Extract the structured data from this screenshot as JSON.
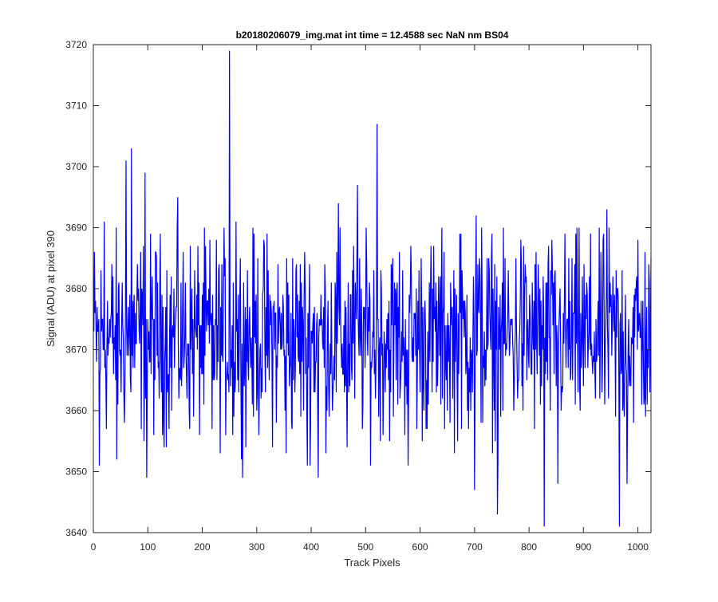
{
  "chart_data": {
    "type": "line",
    "title": "b20180206079_img.mat int time = 12.4588 sec  NaN nm BS04",
    "xlabel": "Track Pixels",
    "ylabel": "Signal (ADU) at pixel 390",
    "xlim": [
      0,
      1024
    ],
    "ylim": [
      3640,
      3720
    ],
    "xticks": [
      0,
      100,
      200,
      300,
      400,
      500,
      600,
      700,
      800,
      900,
      1000
    ],
    "yticks": [
      3640,
      3650,
      3660,
      3670,
      3680,
      3690,
      3700,
      3710,
      3720
    ],
    "grid": false,
    "series": [
      {
        "color": "#0000ff",
        "n_points": 1024,
        "x_start": 1,
        "baseline": 3672,
        "noise_amplitude": 8,
        "values_known": [
          [
            11,
            3651
          ],
          [
            20,
            3691
          ],
          [
            43,
            3652
          ],
          [
            60,
            3701
          ],
          [
            70,
            3703
          ],
          [
            95,
            3699
          ],
          [
            98,
            3649
          ],
          [
            155,
            3695
          ],
          [
            218,
            3657
          ],
          [
            250,
            3719
          ],
          [
            256,
            3656
          ],
          [
            262,
            3691
          ],
          [
            354,
            3653
          ],
          [
            393,
            3651
          ],
          [
            413,
            3649
          ],
          [
            450,
            3694
          ],
          [
            466,
            3654
          ],
          [
            485,
            3697
          ],
          [
            521,
            3707
          ],
          [
            578,
            3651
          ],
          [
            673,
            3689
          ],
          [
            700,
            3647
          ],
          [
            703,
            3692
          ],
          [
            713,
            3690
          ],
          [
            742,
            3643
          ],
          [
            785,
            3688
          ],
          [
            828,
            3641
          ],
          [
            853,
            3648
          ],
          [
            943,
            3693
          ],
          [
            966,
            3641
          ],
          [
            980,
            3648
          ],
          [
            1000,
            3688
          ]
        ]
      }
    ]
  }
}
